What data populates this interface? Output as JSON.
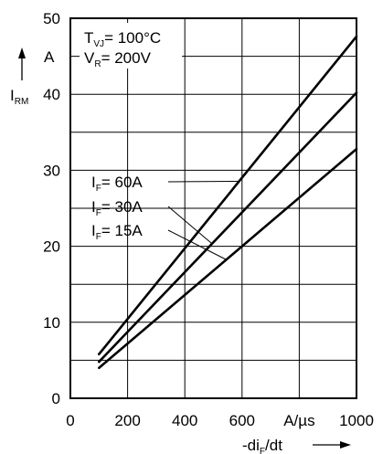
{
  "chart_data": {
    "type": "line",
    "x": [
      100,
      1000
    ],
    "series": [
      {
        "name": "IF = 60A",
        "label_main": "I",
        "label_sub": "F",
        "label_rest": "= 60A",
        "values": [
          5.8,
          47.6
        ]
      },
      {
        "name": "IF = 30A",
        "label_main": "I",
        "label_sub": "F",
        "label_rest": "= 30A",
        "values": [
          4.8,
          40.2
        ]
      },
      {
        "name": "IF = 15A",
        "label_main": "I",
        "label_sub": "F",
        "label_rest": "= 15A",
        "values": [
          4.0,
          32.8
        ]
      }
    ],
    "xlim": [
      0,
      1000
    ],
    "ylim": [
      0,
      50
    ],
    "x_ticks": [
      0,
      200,
      400,
      600,
      800,
      1000
    ],
    "x_tick_labels": [
      "0",
      "200",
      "400",
      "600",
      "A/µs",
      "1000"
    ],
    "y_ticks": [
      0,
      10,
      20,
      30,
      40,
      50
    ],
    "y_tick_labels": [
      "0",
      "10",
      "20",
      "30",
      "40",
      "50"
    ],
    "grid": true,
    "xlabel": {
      "main": "-di",
      "sub": "F",
      "rest": "/dt"
    },
    "ylabel": {
      "main": "I",
      "sub": "RM"
    },
    "y_unit": "A",
    "conditions": [
      {
        "main": "T",
        "sub": "VJ",
        "rest": "= 100°C"
      },
      {
        "main": "V",
        "sub": "R",
        "rest": "= 200V"
      }
    ]
  }
}
